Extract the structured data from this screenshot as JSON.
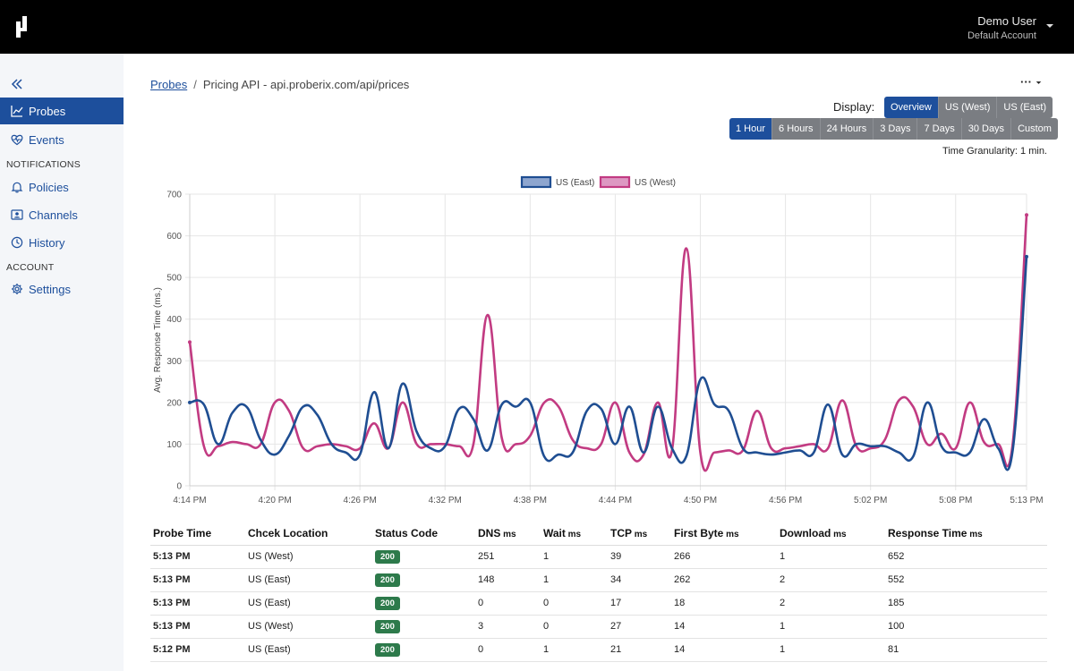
{
  "header": {
    "user_name": "Demo User",
    "account_name": "Default Account"
  },
  "sidebar": {
    "items": [
      {
        "label": "Probes",
        "icon": "line-chart-icon",
        "active": true
      },
      {
        "label": "Events",
        "icon": "heart-pulse-icon"
      },
      {
        "label": "Policies",
        "icon": "bell-icon"
      },
      {
        "label": "Channels",
        "icon": "contact-card-icon"
      },
      {
        "label": "History",
        "icon": "clock-icon"
      },
      {
        "label": "Settings",
        "icon": "gear-icon"
      }
    ],
    "sections": [
      "NOTIFICATIONS",
      "ACCOUNT"
    ]
  },
  "breadcrumb": {
    "root": "Probes",
    "current": "Pricing API - api.proberix.com/api/prices"
  },
  "more_menu": "···",
  "display": {
    "label": "Display:",
    "options": [
      "Overview",
      "US (West)",
      "US (East)"
    ],
    "selected": "Overview"
  },
  "range": {
    "options": [
      "1 Hour",
      "6 Hours",
      "24 Hours",
      "3 Days",
      "7 Days",
      "30 Days",
      "Custom"
    ],
    "selected": "1 Hour"
  },
  "granularity": "Time Granularity: 1 min.",
  "colors": {
    "east": "#1f4e92",
    "west": "#c23b82",
    "accent": "#1d4f9c",
    "badge": "#2d7a4b"
  },
  "chart_data": {
    "type": "line",
    "ylabel": "Avg. Response Time (ms.)",
    "ylim": [
      0,
      700
    ],
    "yticks": [
      0,
      100,
      200,
      300,
      400,
      500,
      600,
      700
    ],
    "xticks": [
      "4:14 PM",
      "4:20 PM",
      "4:26 PM",
      "4:32 PM",
      "4:38 PM",
      "4:44 PM",
      "4:50 PM",
      "4:56 PM",
      "5:02 PM",
      "5:08 PM",
      "5:13 PM"
    ],
    "xtick_positions": [
      0,
      6,
      12,
      18,
      24,
      30,
      36,
      42,
      48,
      54,
      59
    ],
    "legend": [
      "US (East)",
      "US (West)"
    ],
    "legend_position": "top",
    "grid": true,
    "series": [
      {
        "name": "US (East)",
        "values": [
          200,
          195,
          100,
          175,
          190,
          110,
          75,
          120,
          190,
          170,
          100,
          80,
          75,
          225,
          90,
          245,
          130,
          90,
          95,
          185,
          160,
          85,
          195,
          190,
          200,
          70,
          75,
          80,
          180,
          185,
          100,
          190,
          80,
          190,
          90,
          70,
          255,
          195,
          180,
          90,
          80,
          75,
          80,
          85,
          80,
          195,
          75,
          100,
          95,
          95,
          80,
          70,
          200,
          95,
          80,
          80,
          160,
          90,
          80,
          550
        ]
      },
      {
        "name": "US (West)",
        "values": [
          345,
          95,
          95,
          105,
          100,
          100,
          200,
          180,
          90,
          95,
          100,
          95,
          90,
          150,
          90,
          200,
          100,
          100,
          100,
          95,
          100,
          410,
          115,
          100,
          120,
          200,
          190,
          110,
          90,
          100,
          200,
          80,
          75,
          200,
          85,
          570,
          80,
          80,
          85,
          85,
          180,
          90,
          90,
          95,
          100,
          90,
          205,
          95,
          90,
          110,
          205,
          190,
          100,
          125,
          90,
          200,
          105,
          100,
          95,
          650
        ]
      }
    ]
  },
  "table": {
    "columns": [
      {
        "label": "Probe Time",
        "unit": ""
      },
      {
        "label": "Chcek Location",
        "unit": ""
      },
      {
        "label": "Status Code",
        "unit": ""
      },
      {
        "label": "DNS",
        "unit": "ms"
      },
      {
        "label": "Wait",
        "unit": "ms"
      },
      {
        "label": "TCP",
        "unit": "ms"
      },
      {
        "label": "First Byte",
        "unit": "ms"
      },
      {
        "label": "Download",
        "unit": "ms"
      },
      {
        "label": "Response Time",
        "unit": "ms"
      }
    ],
    "rows": [
      [
        "5:13 PM",
        "US (West)",
        "200",
        "251",
        "1",
        "39",
        "266",
        "1",
        "652"
      ],
      [
        "5:13 PM",
        "US (East)",
        "200",
        "148",
        "1",
        "34",
        "262",
        "2",
        "552"
      ],
      [
        "5:13 PM",
        "US (East)",
        "200",
        "0",
        "0",
        "17",
        "18",
        "2",
        "185"
      ],
      [
        "5:13 PM",
        "US (West)",
        "200",
        "3",
        "0",
        "27",
        "14",
        "1",
        "100"
      ],
      [
        "5:12 PM",
        "US (East)",
        "200",
        "0",
        "1",
        "21",
        "14",
        "1",
        "81"
      ]
    ]
  }
}
